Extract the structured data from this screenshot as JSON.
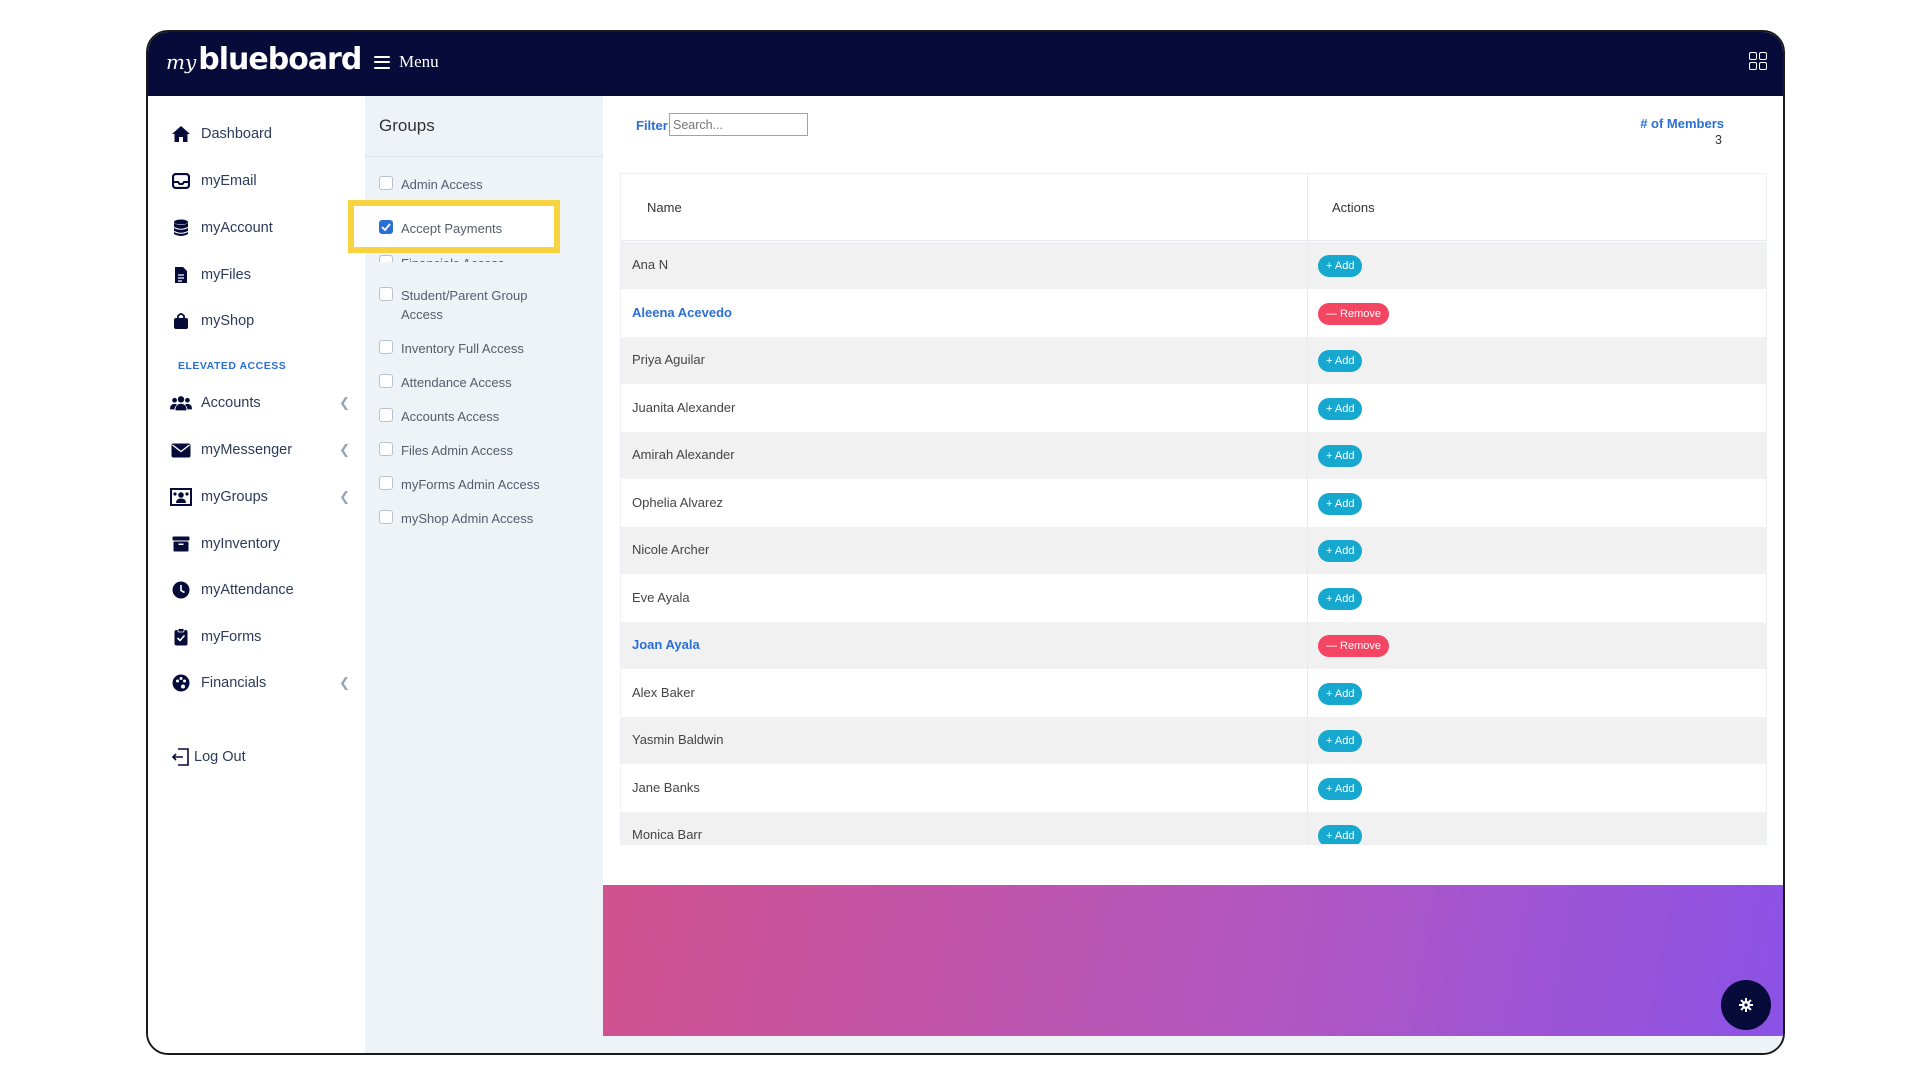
{
  "header": {
    "logo_prefix": "my",
    "logo_text": "blueboard",
    "menu_label": "Menu"
  },
  "sidebar": {
    "items": [
      {
        "label": "Dashboard",
        "icon": "home-icon"
      },
      {
        "label": "myEmail",
        "icon": "inbox-icon"
      },
      {
        "label": "myAccount",
        "icon": "database-icon"
      },
      {
        "label": "myFiles",
        "icon": "file-icon"
      },
      {
        "label": "myShop",
        "icon": "shopping-bag-icon"
      }
    ],
    "section_title": "ELEVATED ACCESS",
    "elevated_items": [
      {
        "label": "Accounts",
        "icon": "users-icon",
        "has_submenu": true
      },
      {
        "label": "myMessenger",
        "icon": "envelope-icon",
        "has_submenu": true
      },
      {
        "label": "myGroups",
        "icon": "group-icon",
        "has_submenu": true
      },
      {
        "label": "myInventory",
        "icon": "archive-icon",
        "has_submenu": false
      },
      {
        "label": "myAttendance",
        "icon": "clock-icon",
        "has_submenu": false
      },
      {
        "label": "myForms",
        "icon": "clipboard-icon",
        "has_submenu": false
      },
      {
        "label": "Financials",
        "icon": "palette-icon",
        "has_submenu": true
      }
    ],
    "logout_label": "Log Out"
  },
  "groups": {
    "title": "Groups",
    "items": [
      {
        "label": "Admin Access",
        "checked": false
      },
      {
        "label": "Accept Payments",
        "checked": true
      },
      {
        "label": "Financials Access",
        "checked": false
      },
      {
        "label": "Student/Parent Group Access",
        "checked": false
      },
      {
        "label": "Inventory Full Access",
        "checked": false
      },
      {
        "label": "Attendance Access",
        "checked": false
      },
      {
        "label": "Accounts Access",
        "checked": false
      },
      {
        "label": "Files Admin Access",
        "checked": false
      },
      {
        "label": "myForms Admin Access",
        "checked": false
      },
      {
        "label": "myShop Admin Access",
        "checked": false
      }
    ]
  },
  "filter": {
    "label": "Filter",
    "placeholder": "Search..."
  },
  "members": {
    "label": "# of Members",
    "count": "3"
  },
  "table": {
    "columns": [
      "Name",
      "Actions"
    ],
    "add_label": "+ Add",
    "remove_label": "— Remove",
    "rows": [
      {
        "name": "Ana N",
        "member": false
      },
      {
        "name": "Aleena Acevedo",
        "member": true
      },
      {
        "name": "Priya Aguilar",
        "member": false
      },
      {
        "name": "Juanita Alexander",
        "member": false
      },
      {
        "name": "Amirah Alexander",
        "member": false
      },
      {
        "name": "Ophelia Alvarez",
        "member": false
      },
      {
        "name": "Nicole Archer",
        "member": false
      },
      {
        "name": "Eve Ayala",
        "member": false
      },
      {
        "name": "Joan Ayala",
        "member": true
      },
      {
        "name": "Alex Baker",
        "member": false
      },
      {
        "name": "Yasmin Baldwin",
        "member": false
      },
      {
        "name": "Jane Banks",
        "member": false
      },
      {
        "name": "Monica Barr",
        "member": false
      }
    ]
  },
  "colors": {
    "navy": "#070b3a",
    "accent_blue": "#2a6fd6",
    "add_button": "#17a8cf",
    "remove_button": "#f44563",
    "highlight": "#f6d33f"
  }
}
